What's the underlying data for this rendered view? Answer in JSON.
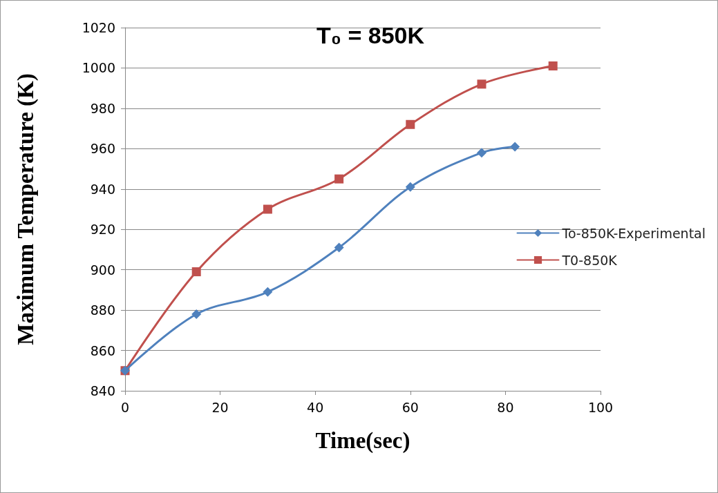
{
  "chart_data": {
    "type": "line",
    "title": "T₀ = 850K",
    "xlabel": "Time(sec)",
    "ylabel": "Maximum Temperature (K)",
    "series": [
      {
        "name": "To-850K-Experimental",
        "color": "#4f81bd",
        "marker": "diamond",
        "x": [
          0,
          15,
          30,
          45,
          60,
          75,
          82
        ],
        "values": [
          850,
          878,
          889,
          911,
          941,
          958,
          961
        ]
      },
      {
        "name": "T0-850K",
        "color": "#c0504d",
        "marker": "square",
        "x": [
          0,
          15,
          30,
          45,
          60,
          75,
          90
        ],
        "values": [
          850,
          899,
          930,
          945,
          972,
          992,
          1001
        ]
      }
    ],
    "xlim": [
      0,
      100
    ],
    "xticks": [
      0,
      20,
      40,
      60,
      80,
      100
    ],
    "ylim": [
      840,
      1020
    ],
    "yticks": [
      840,
      860,
      880,
      900,
      920,
      940,
      960,
      980,
      1000,
      1020
    ],
    "grid": "y",
    "legend": "right",
    "line_style": "solid"
  }
}
